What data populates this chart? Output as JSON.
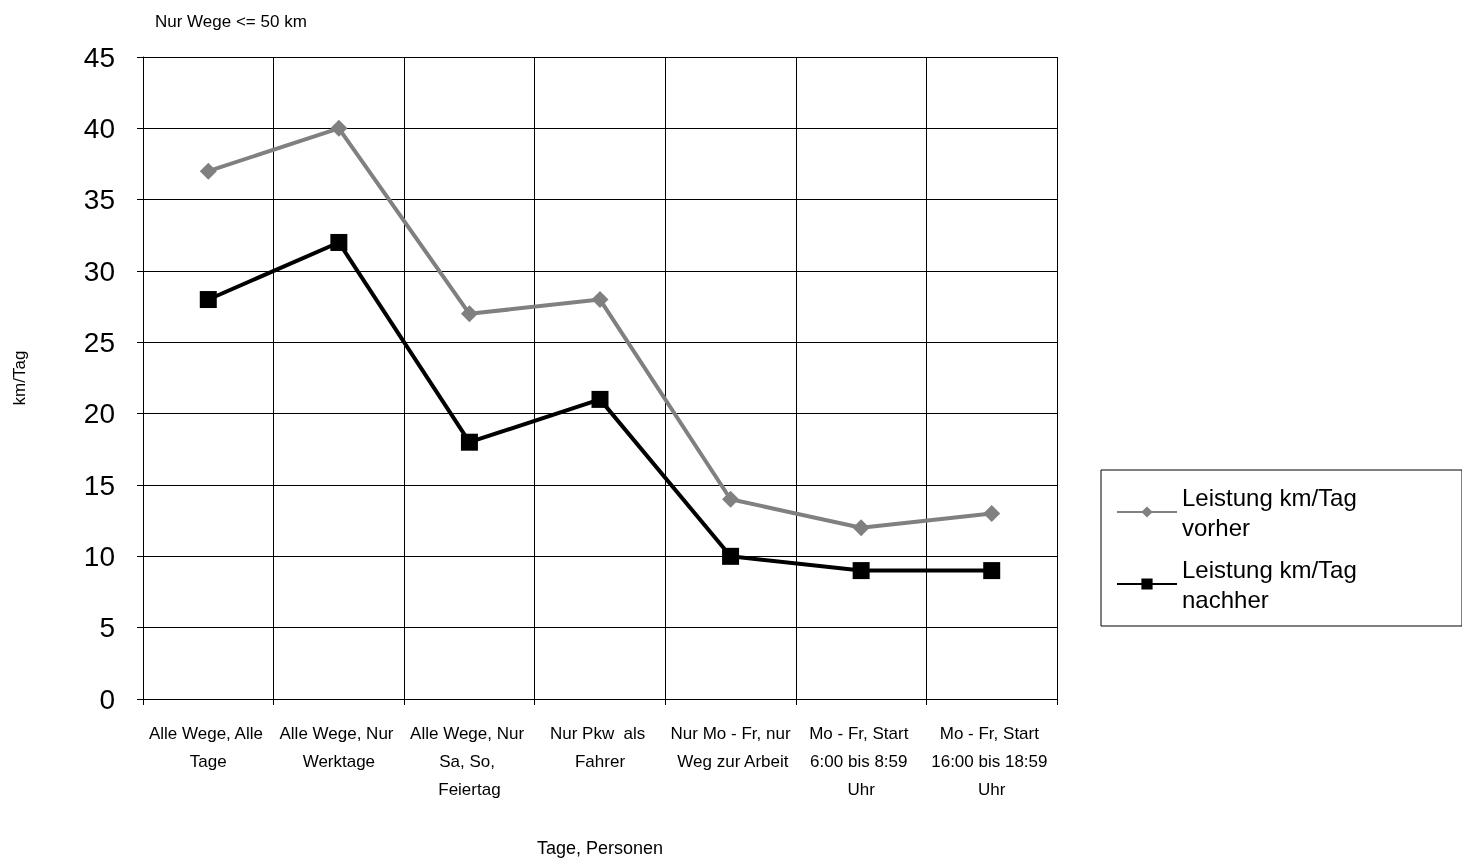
{
  "chart_data": {
    "type": "line",
    "title": "Nur Wege <= 50 km",
    "xlabel": "Tage, Personen",
    "ylabel": "km/Tag",
    "categories": [
      "Alle Wege, Alle Tage",
      "Alle Wege, Nur Werktage",
      "Alle Wege, Nur Sa, So, Feiertag",
      "Nur Pkw  als Fahrer",
      "Nur Mo - Fr, nur Weg zur Arbeit",
      "Mo - Fr, Start 6:00 bis 8:59 Uhr",
      "Mo - Fr, Start 16:00 bis 18:59 Uhr"
    ],
    "series": [
      {
        "name": "Leistung km/Tag vorher",
        "color": "#808080",
        "marker": "diamond",
        "values": [
          37,
          40,
          27,
          28,
          14,
          12,
          13
        ]
      },
      {
        "name": "Leistung km/Tag nachher",
        "color": "#000000",
        "marker": "square",
        "values": [
          28,
          32,
          18,
          21,
          10,
          9,
          9
        ]
      }
    ],
    "ylim": [
      0,
      45
    ],
    "yticks": [
      0,
      5,
      10,
      15,
      20,
      25,
      30,
      35,
      40,
      45
    ],
    "grid": true,
    "legend": "right",
    "line_style": "solid"
  }
}
